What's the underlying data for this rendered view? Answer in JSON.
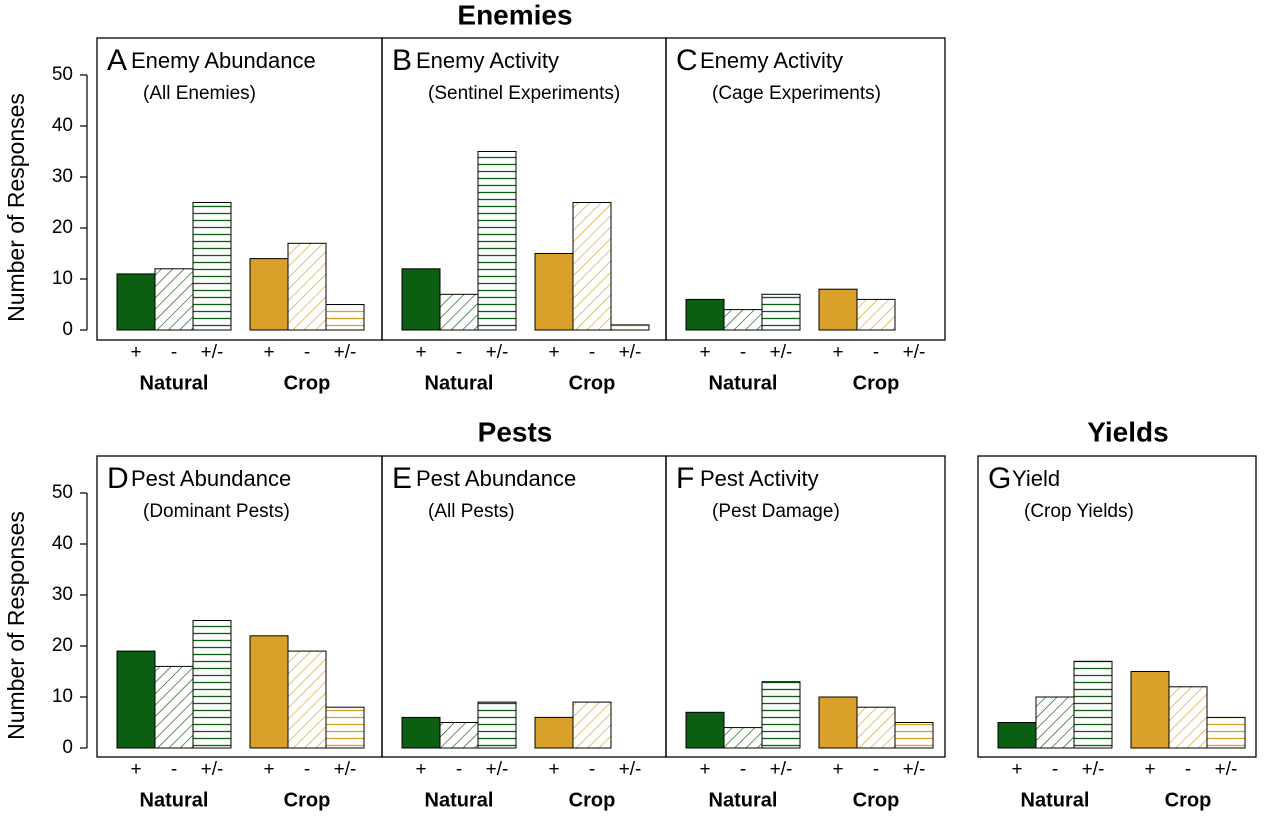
{
  "headings": {
    "enemies": "Enemies",
    "pests": "Pests",
    "yields": "Yields"
  },
  "chart_data": [
    {
      "type": "bar",
      "label": "A",
      "title": "Enemy Abundance",
      "subtitle": "(All Enemies)",
      "y_label": "Number of Responses",
      "categories": [
        "+",
        "-",
        "+/-"
      ],
      "series": [
        {
          "name": "Natural",
          "color": "#0b5e12",
          "values": [
            11,
            12,
            25
          ]
        },
        {
          "name": "Crop",
          "color": "#d9a12a",
          "values": [
            14,
            17,
            5
          ]
        }
      ],
      "ylim": [
        0,
        50
      ],
      "yticks": [
        0,
        10,
        20,
        30,
        40,
        50
      ]
    },
    {
      "type": "bar",
      "label": "B",
      "title": "Enemy Activity",
      "subtitle": "(Sentinel Experiments)",
      "categories": [
        "+",
        "-",
        "+/-"
      ],
      "series": [
        {
          "name": "Natural",
          "color": "#0b5e12",
          "values": [
            12,
            7,
            35
          ]
        },
        {
          "name": "Crop",
          "color": "#d9a12a",
          "values": [
            15,
            25,
            1
          ]
        }
      ],
      "ylim": [
        0,
        50
      ]
    },
    {
      "type": "bar",
      "label": "C",
      "title": "Enemy Activity",
      "subtitle": "(Cage Experiments)",
      "categories": [
        "+",
        "-",
        "+/-"
      ],
      "series": [
        {
          "name": "Natural",
          "color": "#0b5e12",
          "values": [
            6,
            4,
            7
          ]
        },
        {
          "name": "Crop",
          "color": "#d9a12a",
          "values": [
            8,
            6,
            0
          ]
        }
      ],
      "ylim": [
        0,
        50
      ]
    },
    {
      "type": "bar",
      "label": "D",
      "title": "Pest Abundance",
      "subtitle": "(Dominant Pests)",
      "y_label": "Number of Responses",
      "categories": [
        "+",
        "-",
        "+/-"
      ],
      "series": [
        {
          "name": "Natural",
          "color": "#0b5e12",
          "values": [
            19,
            16,
            25
          ]
        },
        {
          "name": "Crop",
          "color": "#d9a12a",
          "values": [
            22,
            19,
            8
          ]
        }
      ],
      "ylim": [
        0,
        50
      ],
      "yticks": [
        0,
        10,
        20,
        30,
        40,
        50
      ]
    },
    {
      "type": "bar",
      "label": "E",
      "title": "Pest Abundance",
      "subtitle": "(All Pests)",
      "categories": [
        "+",
        "-",
        "+/-"
      ],
      "series": [
        {
          "name": "Natural",
          "color": "#0b5e12",
          "values": [
            6,
            5,
            9
          ]
        },
        {
          "name": "Crop",
          "color": "#d9a12a",
          "values": [
            6,
            9,
            0
          ]
        }
      ],
      "ylim": [
        0,
        50
      ]
    },
    {
      "type": "bar",
      "label": "F",
      "title": "Pest Activity",
      "subtitle": "(Pest Damage)",
      "categories": [
        "+",
        "-",
        "+/-"
      ],
      "series": [
        {
          "name": "Natural",
          "color": "#0b5e12",
          "values": [
            7,
            4,
            13
          ]
        },
        {
          "name": "Crop",
          "color": "#d9a12a",
          "values": [
            10,
            8,
            5
          ]
        }
      ],
      "ylim": [
        0,
        50
      ]
    },
    {
      "type": "bar",
      "label": "G",
      "title": "Yield",
      "subtitle": "(Crop Yields)",
      "categories": [
        "+",
        "-",
        "+/-"
      ],
      "series": [
        {
          "name": "Natural",
          "color": "#0b5e12",
          "values": [
            5,
            10,
            17
          ]
        },
        {
          "name": "Crop",
          "color": "#d9a12a",
          "values": [
            15,
            12,
            6
          ]
        }
      ],
      "ylim": [
        0,
        50
      ]
    }
  ]
}
